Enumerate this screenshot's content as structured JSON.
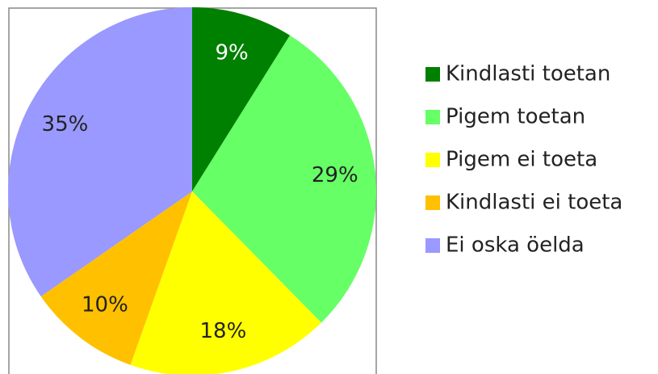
{
  "chart_data": {
    "type": "pie",
    "categories": [
      "Kindlasti toetan",
      "Pigem toetan",
      "Pigem ei toeta",
      "Kindlasti ei toeta",
      "Ei oska öelda"
    ],
    "values": [
      9,
      29,
      18,
      10,
      35
    ],
    "value_labels": [
      "9%",
      "29%",
      "18%",
      "10%",
      "35%"
    ],
    "colors": [
      "#008000",
      "#66ff66",
      "#ffff00",
      "#ffc000",
      "#9999ff"
    ],
    "legend": "right"
  }
}
